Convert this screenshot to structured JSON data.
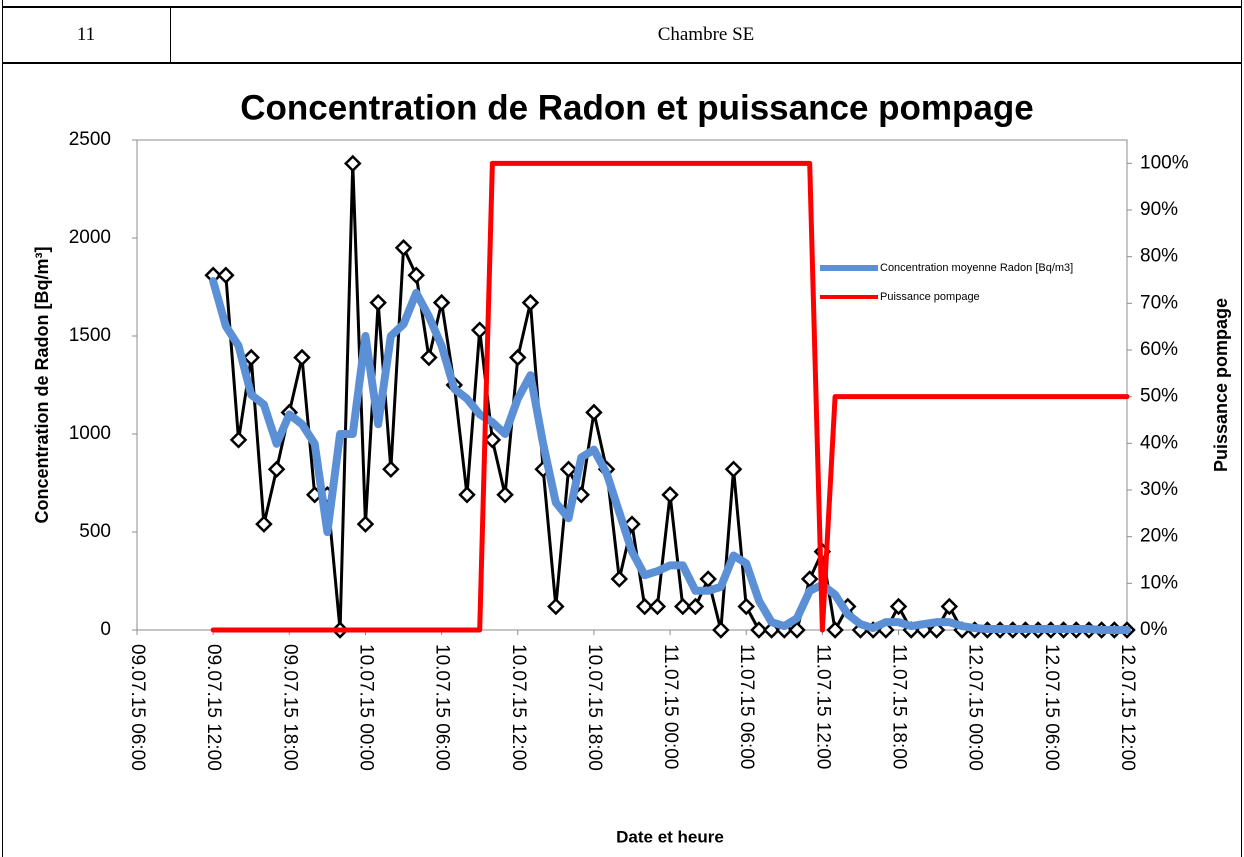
{
  "table": {
    "number": "11",
    "label": "Chambre SE"
  },
  "chart_data": {
    "type": "line",
    "title": "Concentration de Radon et puissance pompage",
    "x_label": "Date et heure",
    "y_label": "Concentration de Radon  [Bq/m³]",
    "y2_label": "Puissance pompage",
    "x": [
      "09.07.15 12:00",
      "09.07.15 13:00",
      "09.07.15 14:00",
      "09.07.15 15:00",
      "09.07.15 16:00",
      "09.07.15 17:00",
      "09.07.15 18:00",
      "09.07.15 19:00",
      "09.07.15 20:00",
      "09.07.15 21:00",
      "09.07.15 22:00",
      "09.07.15 23:00",
      "10.07.15 00:00",
      "10.07.15 01:00",
      "10.07.15 02:00",
      "10.07.15 03:00",
      "10.07.15 04:00",
      "10.07.15 05:00",
      "10.07.15 06:00",
      "10.07.15 07:00",
      "10.07.15 08:00",
      "10.07.15 09:00",
      "10.07.15 10:00",
      "10.07.15 11:00",
      "10.07.15 12:00",
      "10.07.15 13:00",
      "10.07.15 14:00",
      "10.07.15 15:00",
      "10.07.15 16:00",
      "10.07.15 17:00",
      "10.07.15 18:00",
      "10.07.15 19:00",
      "10.07.15 20:00",
      "10.07.15 21:00",
      "10.07.15 22:00",
      "10.07.15 23:00",
      "11.07.15 00:00",
      "11.07.15 01:00",
      "11.07.15 02:00",
      "11.07.15 03:00",
      "11.07.15 04:00",
      "11.07.15 05:00",
      "11.07.15 06:00",
      "11.07.15 07:00",
      "11.07.15 08:00",
      "11.07.15 09:00",
      "11.07.15 10:00",
      "11.07.15 11:00",
      "11.07.15 12:00",
      "11.07.15 13:00",
      "11.07.15 14:00",
      "11.07.15 15:00",
      "11.07.15 16:00",
      "11.07.15 17:00",
      "11.07.15 18:00",
      "11.07.15 19:00",
      "11.07.15 20:00",
      "11.07.15 21:00",
      "11.07.15 22:00",
      "11.07.15 23:00",
      "12.07.15 00:00",
      "12.07.15 01:00",
      "12.07.15 02:00",
      "12.07.15 03:00",
      "12.07.15 04:00",
      "12.07.15 05:00",
      "12.07.15 06:00",
      "12.07.15 07:00",
      "12.07.15 08:00",
      "12.07.15 09:00",
      "12.07.15 10:00",
      "12.07.15 11:00",
      "12.07.15 12:00"
    ],
    "xlim": [
      "09.07.15 06:00",
      "12.07.15 12:00"
    ],
    "xticks": [
      "09.07.15 06:00",
      "09.07.15 12:00",
      "09.07.15 18:00",
      "10.07.15 00:00",
      "10.07.15 06:00",
      "10.07.15 12:00",
      "10.07.15 18:00",
      "11.07.15 00:00",
      "11.07.15 06:00",
      "11.07.15 12:00",
      "11.07.15 18:00",
      "12.07.15 00:00",
      "12.07.15 06:00",
      "12.07.15 12:00"
    ],
    "ylim": [
      0,
      2500
    ],
    "yticks": [
      0,
      500,
      1000,
      1500,
      2000,
      2500
    ],
    "y2lim": [
      0,
      105
    ],
    "y2ticks": [
      {
        "value": 0,
        "label": "0%"
      },
      {
        "value": 10,
        "label": "10%"
      },
      {
        "value": 20,
        "label": "20%"
      },
      {
        "value": 30,
        "label": "30%"
      },
      {
        "value": 40,
        "label": "40%"
      },
      {
        "value": 50,
        "label": "50%"
      },
      {
        "value": 60,
        "label": "60%"
      },
      {
        "value": 70,
        "label": "70%"
      },
      {
        "value": 80,
        "label": "80%"
      },
      {
        "value": 90,
        "label": "90%"
      },
      {
        "value": 100,
        "label": "100%"
      }
    ],
    "legend": "right",
    "series": [
      {
        "color": "#000000",
        "marker": "diamond",
        "values": [
          1810,
          1810,
          970,
          1390,
          540,
          820,
          1110,
          1390,
          690,
          690,
          0,
          2380,
          540,
          1670,
          820,
          1950,
          1810,
          1390,
          1670,
          1250,
          690,
          1530,
          970,
          690,
          1390,
          1670,
          820,
          120,
          820,
          690,
          1110,
          820,
          260,
          540,
          120,
          120,
          690,
          120,
          120,
          260,
          0,
          820,
          120,
          0,
          0,
          0,
          0,
          260,
          400,
          0,
          120,
          0,
          0,
          0,
          120,
          0,
          0,
          0,
          120,
          0,
          0,
          0,
          0,
          0,
          0,
          0,
          0,
          0,
          0,
          0,
          0,
          0,
          0
        ]
      },
      {
        "name": "Concentration moyenne Radon [Bq/m3]",
        "color": "#5b8fd6",
        "values": [
          1780,
          1550,
          1450,
          1200,
          1150,
          950,
          1100,
          1050,
          950,
          500,
          1000,
          1000,
          1500,
          1050,
          1500,
          1560,
          1720,
          1600,
          1450,
          1230,
          1180,
          1100,
          1060,
          1000,
          1180,
          1300,
          950,
          650,
          570,
          880,
          920,
          800,
          600,
          400,
          280,
          300,
          330,
          330,
          200,
          200,
          220,
          380,
          340,
          150,
          40,
          20,
          60,
          200,
          230,
          180,
          80,
          30,
          10,
          40,
          40,
          20,
          30,
          40,
          40,
          20,
          10,
          5,
          5,
          5,
          5,
          5,
          5,
          5,
          5,
          5,
          0,
          0,
          0
        ]
      },
      {
        "name": "Puissance pompage",
        "color": "#ff0000",
        "axis": "y2",
        "values": [
          0,
          0,
          0,
          0,
          0,
          0,
          0,
          0,
          0,
          0,
          0,
          0,
          0,
          0,
          0,
          0,
          0,
          0,
          0,
          0,
          0,
          0,
          100,
          100,
          100,
          100,
          100,
          100,
          100,
          100,
          100,
          100,
          100,
          100,
          100,
          100,
          100,
          100,
          100,
          100,
          100,
          100,
          100,
          100,
          100,
          100,
          100,
          100,
          0,
          50,
          50,
          50,
          50,
          50,
          50,
          50,
          50,
          50,
          50,
          50,
          50,
          50,
          50,
          50,
          50,
          50,
          50,
          50,
          50,
          50,
          50,
          50,
          50
        ]
      }
    ]
  }
}
